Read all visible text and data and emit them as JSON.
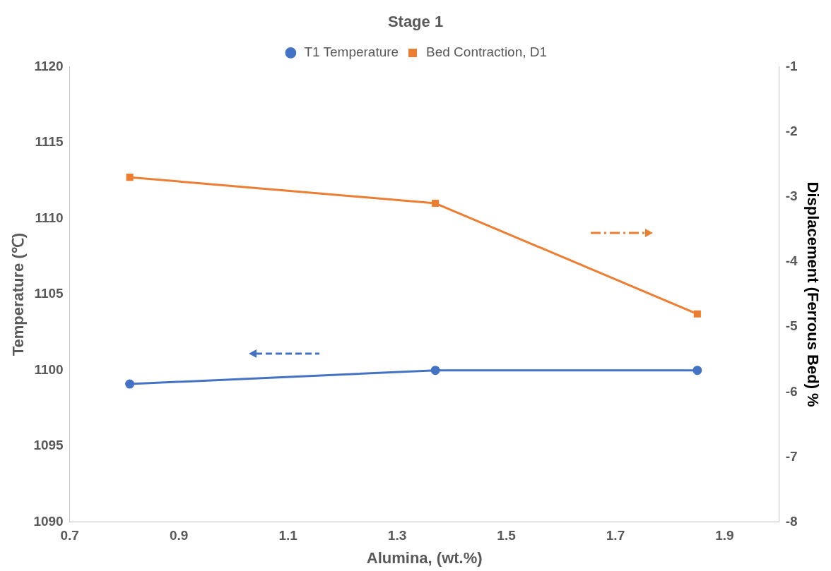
{
  "chart_data": {
    "type": "line",
    "title": "Stage 1",
    "xlabel": "Alumina, (wt.%)",
    "ylabel": "Temperature (℃)",
    "y2label": "Displacement (Ferrous Bed) %",
    "x": [
      0.81,
      1.37,
      1.85
    ],
    "series": [
      {
        "name": "T1 Temperature",
        "color": "#4472c4",
        "values": [
          1099.1,
          1100,
          1100
        ],
        "marker": "circle"
      },
      {
        "name": "Bed Contraction, D1",
        "color": "#ed7d31",
        "values": [
          -2.7,
          -3.1,
          -4.8
        ],
        "axis": "y2",
        "marker": "square"
      }
    ],
    "xlim": [
      0.7,
      2.0
    ],
    "xticks": [
      0.7,
      0.9,
      1.1,
      1.3,
      1.5,
      1.7,
      1.9
    ],
    "ylim": [
      1090,
      1120
    ],
    "yticks": [
      1090,
      1095,
      1100,
      1105,
      1110,
      1115,
      1120
    ],
    "y2lim": [
      -8,
      -1
    ],
    "y2ticks": [
      -8,
      -7,
      -6,
      -5,
      -4,
      -3,
      -2,
      -1
    ],
    "grid": false,
    "legend": "top",
    "line_style": "solid"
  }
}
